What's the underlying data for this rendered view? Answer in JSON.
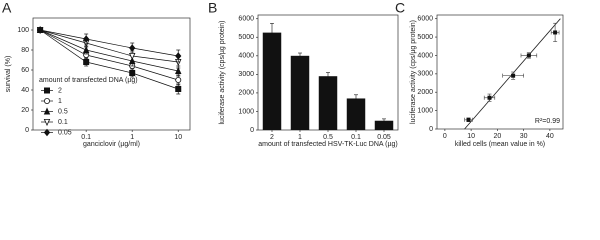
{
  "chart_data": [
    {
      "type": "line",
      "panel": "A",
      "x_label": "ganciclovir (µg/ml)",
      "y_label": "survival (%)",
      "x": [
        0.01,
        0.1,
        1,
        10
      ],
      "xscale": "log",
      "xlim": [
        0.007,
        18
      ],
      "xticks": [
        0.1,
        1,
        10
      ],
      "ylim": [
        0,
        112
      ],
      "yticks": [
        0,
        20,
        40,
        60,
        80,
        100
      ],
      "legend_title": "amount of transfected DNA (µg)",
      "legend": "lower left",
      "color": "#111111",
      "series": [
        {
          "name": "2",
          "marker": "filled-square",
          "values": [
            100,
            68,
            57,
            41
          ],
          "errors": [
            2,
            4,
            4,
            5
          ]
        },
        {
          "name": "1",
          "marker": "open-circle",
          "values": [
            100,
            75,
            64,
            50
          ],
          "errors": [
            2,
            4,
            5,
            5
          ]
        },
        {
          "name": "0.5",
          "marker": "filled-triangle",
          "values": [
            100,
            80,
            69,
            59
          ],
          "errors": [
            2,
            4,
            5,
            5
          ]
        },
        {
          "name": "0.1",
          "marker": "open-triangle-down",
          "values": [
            100,
            87,
            74,
            68
          ],
          "errors": [
            2,
            4,
            5,
            6
          ]
        },
        {
          "name": "0.05",
          "marker": "filled-diamond",
          "values": [
            100,
            91,
            82,
            74
          ],
          "errors": [
            2,
            5,
            5,
            6
          ]
        }
      ]
    },
    {
      "type": "bar",
      "panel": "B",
      "x_label": "amount of transfected HSV-TK-Luc DNA (µg)",
      "y_label": "luciferase activity (cps/µg protein)",
      "categories": [
        "2",
        "1",
        "0.5",
        "0.1",
        "0.05"
      ],
      "values": [
        5250,
        4000,
        2900,
        1700,
        500
      ],
      "errors": [
        500,
        150,
        200,
        200,
        100
      ],
      "color": "#111111",
      "ylim": [
        0,
        6200
      ],
      "yticks": [
        0,
        1000,
        2000,
        3000,
        4000,
        5000,
        6000
      ]
    },
    {
      "type": "scatter",
      "panel": "C",
      "x_label": "killed cells (mean value in %)",
      "y_label": "luciferase activity (cps/µg protein)",
      "x": [
        9,
        17,
        26,
        32,
        42
      ],
      "x_errors": [
        1.5,
        2,
        4,
        3,
        1.5
      ],
      "values": [
        500,
        1700,
        2900,
        4000,
        5250
      ],
      "errors": [
        100,
        200,
        200,
        150,
        500
      ],
      "fit_line": {
        "x": [
          7.5,
          44
        ],
        "y": [
          0,
          6000
        ]
      },
      "annotation": "R²=0.99",
      "color": "#111111",
      "xlim": [
        -3,
        45
      ],
      "xticks": [
        0,
        10,
        20,
        30,
        40
      ],
      "ylim": [
        0,
        6200
      ],
      "yticks": [
        0,
        1000,
        2000,
        3000,
        4000,
        5000,
        6000
      ]
    }
  ]
}
